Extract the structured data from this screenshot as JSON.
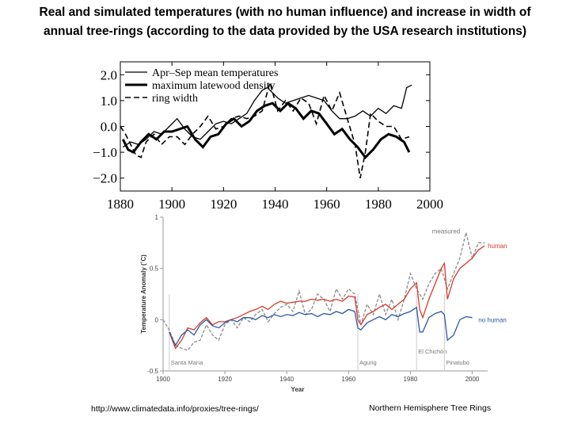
{
  "title": {
    "line1": "Real and simulated temperatures (with no human influence) and increase in width of",
    "line2": "annual tree-rings (according to the data provided by the USA research institutions)"
  },
  "footer": {
    "source_url": "http://www.climatedata.info/proxies/tree-rings/",
    "caption": "Northern Hemisphere Tree Rings"
  },
  "chart_data": [
    {
      "type": "line",
      "title": "",
      "xlabel": "",
      "ylabel": "",
      "xlim": [
        1880,
        2000
      ],
      "ylim": [
        -2.5,
        2.5
      ],
      "x_ticks": [
        1880,
        1900,
        1920,
        1940,
        1960,
        1980,
        2000
      ],
      "y_ticks": [
        2.0,
        1.0,
        0.0,
        -1.0,
        -2.0
      ],
      "y_tick_labels": [
        "2.0",
        "1.0",
        "0.0",
        "−1.0",
        "−2.0"
      ],
      "legend_position": "top-left",
      "series": [
        {
          "name": "Apr–Sep mean temperatures",
          "style": "thin-solid",
          "x": [
            1881,
            1884,
            1887,
            1890,
            1893,
            1896,
            1899,
            1902,
            1905,
            1908,
            1911,
            1914,
            1917,
            1920,
            1923,
            1926,
            1929,
            1932,
            1935,
            1937,
            1939,
            1941,
            1944,
            1947,
            1950,
            1953,
            1956,
            1959,
            1962,
            1965,
            1968,
            1971,
            1974,
            1977,
            1980,
            1983,
            1986,
            1989,
            1991,
            1993
          ],
          "y": [
            -0.8,
            -0.6,
            -0.7,
            -0.5,
            -0.2,
            -0.3,
            0.0,
            0.3,
            -0.1,
            -0.4,
            -0.5,
            -0.2,
            0.1,
            0.2,
            0.1,
            0.3,
            0.5,
            1.0,
            1.4,
            1.5,
            1.3,
            1.1,
            0.9,
            1.0,
            1.1,
            1.2,
            1.1,
            1.0,
            0.6,
            0.3,
            0.3,
            0.4,
            0.6,
            0.4,
            0.7,
            0.5,
            0.8,
            0.7,
            1.5,
            1.6
          ]
        },
        {
          "name": "maximum latewood density",
          "style": "thick-solid",
          "x": [
            1881,
            1883,
            1885,
            1888,
            1891,
            1894,
            1897,
            1900,
            1903,
            1906,
            1909,
            1912,
            1915,
            1918,
            1921,
            1924,
            1927,
            1930,
            1933,
            1936,
            1939,
            1942,
            1945,
            1948,
            1951,
            1954,
            1957,
            1960,
            1963,
            1966,
            1969,
            1972,
            1975,
            1978,
            1981,
            1984,
            1987,
            1990,
            1992
          ],
          "y": [
            -0.5,
            -0.9,
            -1.0,
            -0.6,
            -0.3,
            -0.5,
            -0.2,
            -0.2,
            -0.1,
            0.0,
            -0.5,
            -0.8,
            -0.4,
            -0.3,
            0.1,
            0.3,
            0.0,
            0.2,
            0.6,
            0.8,
            0.9,
            0.6,
            0.9,
            0.7,
            0.3,
            0.6,
            0.5,
            0.1,
            -0.3,
            -0.1,
            -0.5,
            -0.8,
            -1.2,
            -0.9,
            -0.5,
            -0.3,
            -0.4,
            -0.6,
            -1.0
          ]
        },
        {
          "name": "ring width",
          "style": "dashed",
          "x": [
            1880,
            1882,
            1884,
            1886,
            1888,
            1890,
            1893,
            1896,
            1899,
            1902,
            1905,
            1908,
            1911,
            1914,
            1917,
            1920,
            1923,
            1926,
            1929,
            1932,
            1935,
            1938,
            1941,
            1944,
            1947,
            1950,
            1953,
            1956,
            1959,
            1962,
            1965,
            1968,
            1971,
            1973,
            1975,
            1977,
            1980,
            1983,
            1986,
            1989,
            1992
          ],
          "y": [
            0.0,
            -0.3,
            -0.7,
            -1.1,
            -1.2,
            -0.6,
            -0.3,
            -0.7,
            -0.4,
            -0.4,
            -0.7,
            -0.3,
            0.0,
            0.4,
            -0.1,
            0.0,
            0.3,
            0.4,
            0.3,
            0.4,
            0.6,
            1.7,
            0.6,
            1.0,
            0.6,
            1.1,
            0.9,
            0.1,
            1.2,
            0.6,
            1.3,
            0.3,
            -0.7,
            -2.0,
            -1.0,
            0.5,
            0.2,
            0.0,
            0.0,
            -0.5,
            -0.4
          ]
        }
      ]
    },
    {
      "type": "line",
      "title": "",
      "xlabel": "Year",
      "ylabel": "Temperature Anomaly (˚C)",
      "xlim": [
        1900,
        2005
      ],
      "ylim": [
        -0.5,
        1.0
      ],
      "x_ticks": [
        1900,
        1920,
        1940,
        1960,
        1980,
        2000
      ],
      "y_ticks": [
        -0.5,
        0,
        0.5,
        1
      ],
      "y_tick_labels": [
        "-0.5",
        "0",
        "0.5",
        "1"
      ],
      "series": [
        {
          "name": "measured",
          "style": "dashed",
          "color": "#8a8a8a",
          "x": [
            1900,
            1902,
            1904,
            1906,
            1908,
            1910,
            1912,
            1914,
            1916,
            1918,
            1920,
            1922,
            1924,
            1926,
            1928,
            1930,
            1932,
            1934,
            1936,
            1938,
            1940,
            1942,
            1944,
            1946,
            1948,
            1950,
            1952,
            1954,
            1956,
            1958,
            1960,
            1962,
            1964,
            1966,
            1968,
            1970,
            1972,
            1974,
            1976,
            1978,
            1980,
            1982,
            1984,
            1986,
            1988,
            1990,
            1992,
            1994,
            1996,
            1998,
            2000,
            2002,
            2004
          ],
          "y": [
            0.0,
            -0.1,
            -0.25,
            -0.28,
            -0.3,
            -0.22,
            -0.2,
            -0.05,
            -0.15,
            -0.2,
            -0.05,
            0.0,
            -0.08,
            0.02,
            -0.02,
            0.05,
            0.1,
            -0.02,
            0.06,
            0.12,
            0.15,
            0.08,
            0.28,
            0.05,
            0.1,
            0.25,
            0.2,
            0.08,
            0.3,
            0.2,
            0.3,
            0.25,
            -0.05,
            0.15,
            0.05,
            0.25,
            0.05,
            0.2,
            0.0,
            0.2,
            0.45,
            0.3,
            0.2,
            0.35,
            0.45,
            0.5,
            0.3,
            0.45,
            0.6,
            0.85,
            0.6,
            0.75,
            0.75
          ]
        },
        {
          "name": "human influence",
          "style": "solid",
          "color": "#d93a2b",
          "x": [
            1902,
            1904,
            1906,
            1908,
            1910,
            1912,
            1914,
            1916,
            1918,
            1920,
            1922,
            1924,
            1926,
            1928,
            1930,
            1932,
            1934,
            1936,
            1938,
            1940,
            1942,
            1944,
            1946,
            1948,
            1950,
            1952,
            1954,
            1956,
            1958,
            1960,
            1962,
            1963,
            1964,
            1966,
            1968,
            1970,
            1972,
            1974,
            1976,
            1978,
            1980,
            1982,
            1983,
            1984,
            1986,
            1988,
            1990,
            1991,
            1992,
            1994,
            1996,
            1998,
            2000,
            2002,
            2004
          ],
          "y": [
            -0.12,
            -0.28,
            -0.2,
            -0.08,
            -0.1,
            -0.03,
            0.02,
            -0.05,
            -0.02,
            -0.02,
            0.0,
            0.02,
            0.05,
            0.08,
            0.1,
            0.13,
            0.1,
            0.15,
            0.18,
            0.16,
            0.17,
            0.18,
            0.18,
            0.2,
            0.19,
            0.2,
            0.18,
            0.2,
            0.18,
            0.23,
            0.22,
            0.0,
            -0.05,
            0.05,
            0.08,
            0.12,
            0.15,
            0.1,
            0.15,
            0.2,
            0.3,
            0.36,
            0.1,
            0.02,
            0.2,
            0.35,
            0.5,
            0.55,
            0.2,
            0.4,
            0.5,
            0.55,
            0.6,
            0.68,
            0.72
          ]
        },
        {
          "name": "no human influence",
          "style": "solid",
          "color": "#2c58a8",
          "x": [
            1902,
            1904,
            1906,
            1908,
            1910,
            1912,
            1914,
            1916,
            1918,
            1920,
            1922,
            1924,
            1926,
            1928,
            1930,
            1932,
            1934,
            1936,
            1938,
            1940,
            1942,
            1944,
            1946,
            1948,
            1950,
            1952,
            1954,
            1956,
            1958,
            1960,
            1962,
            1963,
            1964,
            1966,
            1968,
            1970,
            1972,
            1974,
            1976,
            1978,
            1980,
            1982,
            1983,
            1984,
            1986,
            1988,
            1990,
            1991,
            1992,
            1994,
            1996,
            1998,
            2000
          ],
          "y": [
            -0.12,
            -0.25,
            -0.15,
            -0.1,
            -0.15,
            -0.05,
            0.0,
            -0.06,
            -0.08,
            -0.03,
            0.0,
            -0.02,
            0.02,
            0.02,
            0.0,
            0.04,
            0.02,
            0.05,
            0.03,
            0.05,
            0.04,
            0.07,
            0.05,
            0.06,
            0.03,
            0.06,
            0.05,
            0.08,
            0.06,
            0.1,
            0.08,
            -0.08,
            -0.1,
            -0.03,
            0.0,
            0.03,
            0.0,
            0.05,
            0.03,
            0.06,
            0.08,
            0.12,
            -0.12,
            -0.12,
            0.02,
            0.06,
            0.08,
            0.05,
            -0.2,
            -0.15,
            0.0,
            0.03,
            0.02
          ]
        }
      ],
      "volcano_lines": [
        {
          "name": "Santa Maria",
          "x": 1902,
          "label_level": "low"
        },
        {
          "name": "Agung",
          "x": 1963,
          "label_level": "low"
        },
        {
          "name": "El Chichón",
          "x": 1982,
          "label_level": "high"
        },
        {
          "name": "Pinatubo",
          "x": 1991,
          "label_level": "low"
        }
      ]
    }
  ]
}
